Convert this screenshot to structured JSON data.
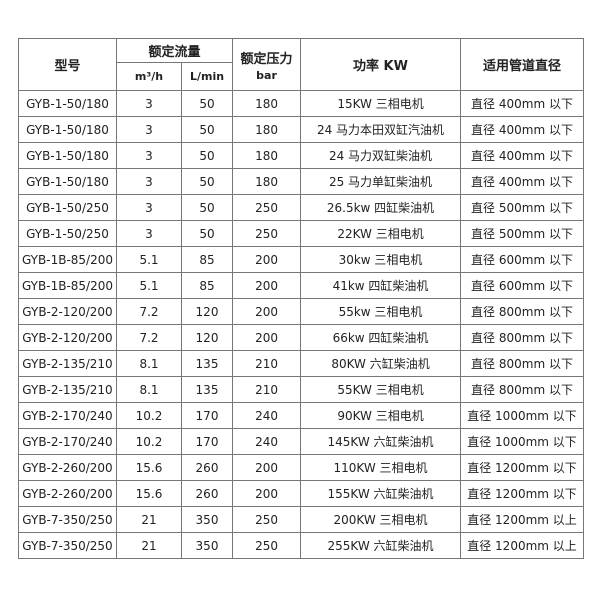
{
  "table": {
    "header": {
      "model": "型号",
      "flow": "额定流量",
      "flow_m3": "m³/h",
      "flow_l": "L/min",
      "pressure": "额定压力",
      "pressure_unit": "bar",
      "power": "功率 KW",
      "pipe": "适用管道直径"
    },
    "rows": [
      [
        "GYB-1-50/180",
        "3",
        "50",
        "180",
        "15KW 三相电机",
        "直径 400mm 以下"
      ],
      [
        "GYB-1-50/180",
        "3",
        "50",
        "180",
        "24 马力本田双缸汽油机",
        "直径 400mm 以下"
      ],
      [
        "GYB-1-50/180",
        "3",
        "50",
        "180",
        "24 马力双缸柴油机",
        "直径 400mm 以下"
      ],
      [
        "GYB-1-50/180",
        "3",
        "50",
        "180",
        "25 马力单缸柴油机",
        "直径 400mm 以下"
      ],
      [
        "GYB-1-50/250",
        "3",
        "50",
        "250",
        "26.5kw 四缸柴油机",
        "直径 500mm 以下"
      ],
      [
        "GYB-1-50/250",
        "3",
        "50",
        "250",
        "22KW 三相电机",
        "直径 500mm 以下"
      ],
      [
        "GYB-1B-85/200",
        "5.1",
        "85",
        "200",
        "30kw 三相电机",
        "直径 600mm 以下"
      ],
      [
        "GYB-1B-85/200",
        "5.1",
        "85",
        "200",
        "41kw 四缸柴油机",
        "直径 600mm 以下"
      ],
      [
        "GYB-2-120/200",
        "7.2",
        "120",
        "200",
        "55kw 三相电机",
        "直径 800mm 以下"
      ],
      [
        "GYB-2-120/200",
        "7.2",
        "120",
        "200",
        "66kw 四缸柴油机",
        "直径 800mm 以下"
      ],
      [
        "GYB-2-135/210",
        "8.1",
        "135",
        "210",
        "80KW 六缸柴油机",
        "直径 800mm 以下"
      ],
      [
        "GYB-2-135/210",
        "8.1",
        "135",
        "210",
        "55KW 三相电机",
        "直径 800mm 以下"
      ],
      [
        "GYB-2-170/240",
        "10.2",
        "170",
        "240",
        "90KW 三相电机",
        "直径 1000mm 以下"
      ],
      [
        "GYB-2-170/240",
        "10.2",
        "170",
        "240",
        "145KW 六缸柴油机",
        "直径 1000mm 以下"
      ],
      [
        "GYB-2-260/200",
        "15.6",
        "260",
        "200",
        "110KW 三相电机",
        "直径 1200mm 以下"
      ],
      [
        "GYB-2-260/200",
        "15.6",
        "260",
        "200",
        "155KW 六缸柴油机",
        "直径 1200mm 以下"
      ],
      [
        "GYB-7-350/250",
        "21",
        "350",
        "250",
        "200KW 三相电机",
        "直径 1200mm 以上"
      ],
      [
        "GYB-7-350/250",
        "21",
        "350",
        "250",
        "255KW 六缸柴油机",
        "直径 1200mm 以上"
      ]
    ]
  }
}
